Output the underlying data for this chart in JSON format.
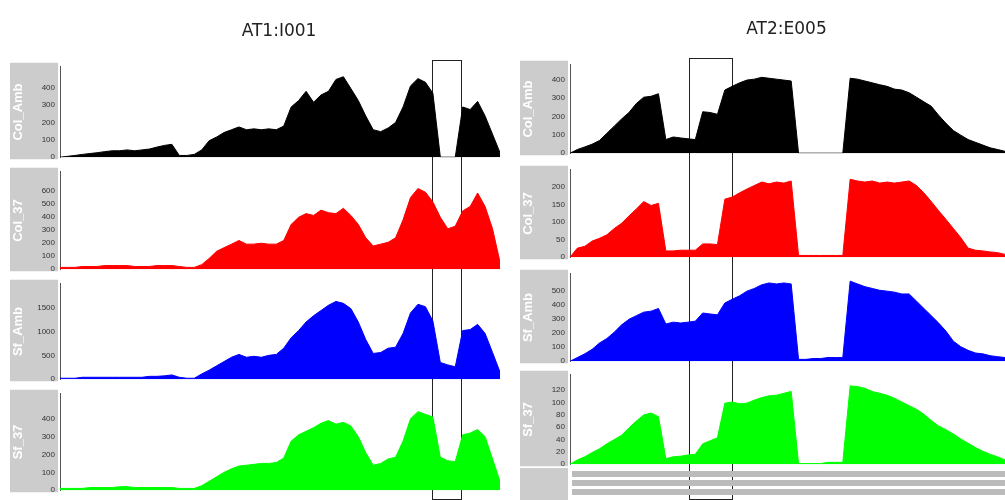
{
  "chart_data": [
    {
      "type": "area",
      "title": "AT1:I001",
      "ylabel": "Col_Amb",
      "categories": [
        null,
        null,
        null,
        null,
        null,
        null,
        null,
        null,
        null,
        null,
        null,
        null,
        null,
        null,
        null,
        null,
        null,
        null,
        null,
        null,
        null,
        null,
        null,
        null,
        null,
        null,
        null,
        null,
        null,
        null,
        null,
        null,
        null,
        null,
        null,
        null,
        null,
        null,
        null,
        null,
        null,
        null,
        null,
        null,
        null,
        null,
        null,
        null,
        null,
        null,
        null,
        null,
        null,
        null,
        null,
        null,
        null,
        null,
        null,
        null
      ],
      "color": "#000000",
      "ylim": [
        0,
        520
      ],
      "yticks": [
        0,
        100,
        200,
        300,
        400
      ],
      "values": [
        0,
        5,
        10,
        16,
        21,
        26,
        32,
        37,
        37,
        42,
        37,
        42,
        47,
        58,
        68,
        74,
        10,
        10,
        16,
        42,
        95,
        116,
        142,
        158,
        174,
        158,
        163,
        158,
        163,
        158,
        179,
        289,
        326,
        379,
        316,
        358,
        379,
        447,
        463,
        395,
        326,
        237,
        158,
        147,
        168,
        200,
        289,
        410,
        452,
        431,
        368,
        0,
        0,
        0,
        289,
        274,
        321,
        237,
        132,
        26
      ]
    },
    {
      "type": "area",
      "ylabel": "Col_37",
      "categories": [
        null,
        null,
        null,
        null,
        null,
        null,
        null,
        null,
        null,
        null,
        null,
        null,
        null,
        null,
        null,
        null,
        null,
        null,
        null,
        null,
        null,
        null,
        null,
        null,
        null,
        null,
        null,
        null,
        null,
        null,
        null,
        null,
        null,
        null,
        null,
        null,
        null,
        null,
        null,
        null,
        null,
        null,
        null,
        null,
        null,
        null,
        null,
        null,
        null,
        null,
        null,
        null,
        null,
        null,
        null,
        null,
        null,
        null,
        null,
        null
      ],
      "color": "#ff0000",
      "ylim": [
        0,
        750
      ],
      "yticks": [
        0,
        100,
        200,
        300,
        400,
        500,
        600
      ],
      "values": [
        14,
        14,
        14,
        21,
        21,
        21,
        28,
        28,
        28,
        28,
        21,
        21,
        21,
        28,
        28,
        28,
        21,
        14,
        14,
        35,
        83,
        138,
        166,
        193,
        221,
        193,
        193,
        200,
        193,
        193,
        221,
        345,
        400,
        428,
        414,
        455,
        435,
        428,
        469,
        414,
        345,
        242,
        179,
        193,
        207,
        242,
        380,
        552,
        621,
        593,
        518,
        400,
        311,
        331,
        449,
        483,
        587,
        483,
        311,
        55
      ]
    },
    {
      "type": "area",
      "ylabel": "Sf_Amb",
      "categories": [
        null,
        null,
        null,
        null,
        null,
        null,
        null,
        null,
        null,
        null,
        null,
        null,
        null,
        null,
        null,
        null,
        null,
        null,
        null,
        null,
        null,
        null,
        null,
        null,
        null,
        null,
        null,
        null,
        null,
        null,
        null,
        null,
        null,
        null,
        null,
        null,
        null,
        null,
        null,
        null,
        null,
        null,
        null,
        null,
        null,
        null,
        null,
        null,
        null,
        null,
        null,
        null,
        null,
        null,
        null,
        null,
        null,
        null,
        null,
        null
      ],
      "color": "#0000ff",
      "ylim": [
        0,
        2000
      ],
      "yticks": [
        0,
        500,
        1000,
        1500
      ],
      "values": [
        20,
        20,
        20,
        40,
        40,
        40,
        40,
        40,
        40,
        40,
        40,
        40,
        60,
        60,
        70,
        90,
        40,
        20,
        20,
        110,
        190,
        280,
        370,
        460,
        520,
        460,
        480,
        460,
        500,
        520,
        650,
        870,
        1020,
        1200,
        1330,
        1440,
        1550,
        1630,
        1590,
        1480,
        1200,
        830,
        540,
        560,
        650,
        670,
        960,
        1390,
        1570,
        1520,
        1220,
        350,
        300,
        260,
        1020,
        1040,
        1150,
        960,
        560,
        150
      ]
    },
    {
      "type": "area",
      "ylabel": "Sf_37",
      "categories": [
        null,
        null,
        null,
        null,
        null,
        null,
        null,
        null,
        null,
        null,
        null,
        null,
        null,
        null,
        null,
        null,
        null,
        null,
        null,
        null,
        null,
        null,
        null,
        null,
        null,
        null,
        null,
        null,
        null,
        null,
        null,
        null,
        null,
        null,
        null,
        null,
        null,
        null,
        null,
        null,
        null,
        null,
        null,
        null,
        null,
        null,
        null,
        null,
        null,
        null,
        null,
        null,
        null,
        null,
        null,
        null,
        null,
        null,
        null,
        null
      ],
      "color": "#00ff00",
      "ylim": [
        0,
        540
      ],
      "yticks": [
        0,
        100,
        200,
        300,
        400
      ],
      "values": [
        10,
        10,
        10,
        10,
        15,
        15,
        15,
        15,
        20,
        20,
        15,
        15,
        15,
        15,
        15,
        15,
        10,
        10,
        10,
        25,
        50,
        75,
        100,
        120,
        135,
        140,
        145,
        150,
        150,
        155,
        180,
        275,
        310,
        330,
        350,
        375,
        390,
        370,
        380,
        360,
        300,
        210,
        140,
        150,
        175,
        185,
        275,
        400,
        440,
        425,
        410,
        185,
        165,
        160,
        310,
        320,
        340,
        300,
        175,
        50
      ]
    },
    {
      "type": "area",
      "title": "AT2:E005",
      "ylabel": "Col_Amb",
      "categories": [
        null,
        null,
        null,
        null,
        null,
        null,
        null,
        null,
        null,
        null,
        null,
        null,
        null,
        null,
        null,
        null,
        null,
        null,
        null,
        null,
        null,
        null,
        null,
        null,
        null,
        null,
        null,
        null,
        null,
        null,
        null,
        null,
        null,
        null,
        null,
        null,
        null,
        null,
        null,
        null,
        null,
        null,
        null,
        null,
        null,
        null,
        null,
        null,
        null,
        null,
        null,
        null,
        null,
        null,
        null,
        null,
        null,
        null,
        null,
        null
      ],
      "color": "#000000",
      "ylim": [
        0,
        480
      ],
      "yticks": [
        0,
        100,
        200,
        300,
        400
      ],
      "values": [
        0,
        20,
        34,
        49,
        69,
        108,
        147,
        186,
        221,
        270,
        304,
        309,
        323,
        74,
        88,
        83,
        78,
        74,
        225,
        221,
        211,
        343,
        363,
        382,
        397,
        402,
        412,
        407,
        402,
        397,
        392,
        0,
        0,
        0,
        0,
        0,
        0,
        0,
        407,
        402,
        392,
        382,
        372,
        363,
        348,
        343,
        328,
        304,
        279,
        255,
        206,
        162,
        123,
        98,
        74,
        59,
        44,
        29,
        20,
        10
      ]
    },
    {
      "type": "area",
      "ylabel": "Col_37",
      "categories": [
        null,
        null,
        null,
        null,
        null,
        null,
        null,
        null,
        null,
        null,
        null,
        null,
        null,
        null,
        null,
        null,
        null,
        null,
        null,
        null,
        null,
        null,
        null,
        null,
        null,
        null,
        null,
        null,
        null,
        null,
        null,
        null,
        null,
        null,
        null,
        null,
        null,
        null,
        null,
        null,
        null,
        null,
        null,
        null,
        null,
        null,
        null,
        null,
        null,
        null,
        null,
        null,
        null,
        null,
        null,
        null,
        null,
        null,
        null,
        null
      ],
      "color": "#ff0000",
      "ylim": [
        0,
        250
      ],
      "yticks": [
        0,
        50,
        100,
        150,
        200
      ],
      "values": [
        0,
        26,
        31,
        46,
        54,
        64,
        82,
        97,
        118,
        138,
        159,
        148,
        154,
        18,
        18,
        20,
        20,
        20,
        38,
        38,
        36,
        166,
        172,
        184,
        195,
        205,
        215,
        210,
        215,
        212,
        218,
        5,
        5,
        5,
        5,
        5,
        5,
        5,
        223,
        218,
        215,
        218,
        212,
        215,
        212,
        215,
        218,
        205,
        184,
        159,
        133,
        108,
        82,
        56,
        26,
        20,
        18,
        15,
        13,
        8
      ]
    },
    {
      "type": "area",
      "ylabel": "Sf_Amb",
      "categories": [
        null,
        null,
        null,
        null,
        null,
        null,
        null,
        null,
        null,
        null,
        null,
        null,
        null,
        null,
        null,
        null,
        null,
        null,
        null,
        null,
        null,
        null,
        null,
        null,
        null,
        null,
        null,
        null,
        null,
        null,
        null,
        null,
        null,
        null,
        null,
        null,
        null,
        null,
        null,
        null,
        null,
        null,
        null,
        null,
        null,
        null,
        null,
        null,
        null,
        null,
        null,
        null,
        null,
        null,
        null,
        null,
        null,
        null,
        null,
        null
      ],
      "color": "#0000ff",
      "ylim": [
        0,
        620
      ],
      "yticks": [
        0,
        100,
        200,
        300,
        400,
        500
      ],
      "values": [
        0,
        26,
        52,
        84,
        129,
        161,
        206,
        258,
        297,
        323,
        348,
        355,
        374,
        264,
        277,
        271,
        277,
        284,
        342,
        335,
        329,
        413,
        439,
        464,
        497,
        516,
        542,
        555,
        548,
        555,
        548,
        13,
        13,
        19,
        19,
        26,
        26,
        26,
        568,
        548,
        529,
        516,
        503,
        497,
        490,
        477,
        477,
        426,
        374,
        323,
        271,
        213,
        142,
        103,
        77,
        58,
        52,
        39,
        32,
        26
      ]
    },
    {
      "type": "area",
      "ylabel": "Sf_37",
      "categories": [
        null,
        null,
        null,
        null,
        null,
        null,
        null,
        null,
        null,
        null,
        null,
        null,
        null,
        null,
        null,
        null,
        null,
        null,
        null,
        null,
        null,
        null,
        null,
        null,
        null,
        null,
        null,
        null,
        null,
        null,
        null,
        null,
        null,
        null,
        null,
        null,
        null,
        null,
        null,
        null,
        null,
        null,
        null,
        null,
        null,
        null,
        null,
        null,
        null,
        null,
        null,
        null,
        null,
        null,
        null,
        null,
        null,
        null,
        null,
        null
      ],
      "color": "#00ff00",
      "ylim": [
        0,
        145
      ],
      "yticks": [
        0,
        20,
        40,
        60,
        80,
        100,
        120
      ],
      "values": [
        0,
        7,
        12,
        19,
        25,
        33,
        40,
        47,
        59,
        70,
        80,
        83,
        77,
        9,
        12,
        13,
        15,
        16,
        33,
        38,
        43,
        99,
        101,
        98,
        99,
        104,
        108,
        111,
        112,
        115,
        118,
        1,
        1,
        1,
        1,
        3,
        3,
        3,
        127,
        126,
        123,
        118,
        115,
        112,
        107,
        101,
        95,
        89,
        81,
        71,
        62,
        56,
        49,
        41,
        34,
        27,
        21,
        16,
        12,
        7
      ]
    }
  ]
}
